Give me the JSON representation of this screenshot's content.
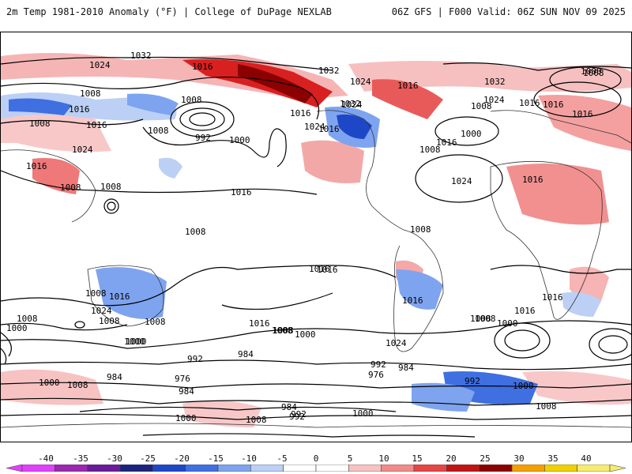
{
  "header": {
    "left_title": "2m Temp 1981-2010 Anomaly (°F) | College of DuPage NEXLAB",
    "right_title": "06Z GFS | F000 Valid: 06Z SUN NOV 09 2025"
  },
  "map": {
    "isobar_labels": [
      {
        "text": "1032",
        "id": "a"
      },
      {
        "text": "1024",
        "id": "b"
      },
      {
        "text": "1016",
        "id": "c"
      },
      {
        "text": "1032",
        "id": "d"
      },
      {
        "text": "1024",
        "id": "e"
      },
      {
        "text": "1016",
        "id": "f"
      },
      {
        "text": "1032",
        "id": "g"
      },
      {
        "text": "1008",
        "id": "h"
      },
      {
        "text": "1016",
        "id": "i"
      },
      {
        "text": "1008",
        "id": "j"
      },
      {
        "text": "1016",
        "id": "k"
      },
      {
        "text": "1008",
        "id": "l"
      },
      {
        "text": "1016",
        "id": "m"
      },
      {
        "text": "992",
        "id": "n"
      },
      {
        "text": "1000",
        "id": "o"
      },
      {
        "text": "1024",
        "id": "p"
      },
      {
        "text": "1016",
        "id": "q"
      },
      {
        "text": "1008",
        "id": "r"
      },
      {
        "text": "1008",
        "id": "s"
      },
      {
        "text": "1016",
        "id": "t"
      },
      {
        "text": "1024",
        "id": "u"
      },
      {
        "text": "1024",
        "id": "v"
      },
      {
        "text": "1016",
        "id": "w"
      },
      {
        "text": "1032",
        "id": "x"
      },
      {
        "text": "1024",
        "id": "y"
      },
      {
        "text": "1016",
        "id": "z"
      },
      {
        "text": "1008",
        "id": "aa"
      },
      {
        "text": "1000",
        "id": "ab"
      },
      {
        "text": "1008",
        "id": "ac"
      },
      {
        "text": "1016",
        "id": "ad"
      },
      {
        "text": "1024",
        "id": "ae"
      },
      {
        "text": "1016",
        "id": "af"
      },
      {
        "text": "1016",
        "id": "ag"
      },
      {
        "text": "1008",
        "id": "ah"
      },
      {
        "text": "1008",
        "id": "ai"
      },
      {
        "text": "1016",
        "id": "aj"
      },
      {
        "text": "1008",
        "id": "ak"
      },
      {
        "text": "1016",
        "id": "al"
      },
      {
        "text": "1008",
        "id": "am"
      },
      {
        "text": "1016",
        "id": "an"
      },
      {
        "text": "1008",
        "id": "ao"
      },
      {
        "text": "1024",
        "id": "ap"
      },
      {
        "text": "1008",
        "id": "aq"
      },
      {
        "text": "1000",
        "id": "ar"
      },
      {
        "text": "1008",
        "id": "as"
      },
      {
        "text": "1016",
        "id": "at"
      },
      {
        "text": "1008",
        "id": "au"
      },
      {
        "text": "1000",
        "id": "av"
      },
      {
        "text": "1024",
        "id": "aw"
      },
      {
        "text": "1008",
        "id": "ax"
      },
      {
        "text": "1016",
        "id": "ay"
      },
      {
        "text": "1000",
        "id": "az"
      },
      {
        "text": "992",
        "id": "ba"
      },
      {
        "text": "984",
        "id": "bb"
      },
      {
        "text": "984",
        "id": "bc"
      },
      {
        "text": "976",
        "id": "bd"
      },
      {
        "text": "984",
        "id": "be"
      },
      {
        "text": "1008",
        "id": "bf"
      },
      {
        "text": "1000",
        "id": "bg"
      },
      {
        "text": "992",
        "id": "bh"
      },
      {
        "text": "976",
        "id": "bi"
      },
      {
        "text": "984",
        "id": "bj"
      },
      {
        "text": "992",
        "id": "bk"
      },
      {
        "text": "992",
        "id": "bl"
      },
      {
        "text": "1000",
        "id": "bm"
      },
      {
        "text": "1008",
        "id": "bn"
      },
      {
        "text": "1000",
        "id": "bo"
      },
      {
        "text": "1008",
        "id": "bp"
      },
      {
        "text": "984",
        "id": "bq"
      },
      {
        "text": "992",
        "id": "br"
      },
      {
        "text": "1000",
        "id": "bs"
      },
      {
        "text": "1000",
        "id": "bt"
      },
      {
        "text": "1008",
        "id": "bu"
      },
      {
        "text": "1008",
        "id": "bv"
      },
      {
        "text": "1016",
        "id": "bw"
      },
      {
        "text": "1000",
        "id": "bx"
      },
      {
        "text": "1016",
        "id": "by"
      },
      {
        "text": "1016",
        "id": "bz"
      },
      {
        "text": "1000",
        "id": "ca"
      },
      {
        "text": "1008",
        "id": "cb"
      }
    ]
  },
  "colorbar": {
    "ticks": [
      "-40",
      "-35",
      "-30",
      "-25",
      "-20",
      "-15",
      "-10",
      "-5",
      "0",
      "5",
      "10",
      "15",
      "20",
      "25",
      "30",
      "35",
      "40"
    ],
    "colors": [
      "#e040fb",
      "#9c27b0",
      "#6a1b9a",
      "#1a237e",
      "#1e47c8",
      "#3f6fe0",
      "#7ea4f0",
      "#bcd0f6",
      "#ffffff",
      "#ffffff",
      "#f8c2c2",
      "#f28a8a",
      "#e64545",
      "#c01515",
      "#8b0000",
      "#f5a000",
      "#f0d000",
      "#f7ec70"
    ]
  }
}
